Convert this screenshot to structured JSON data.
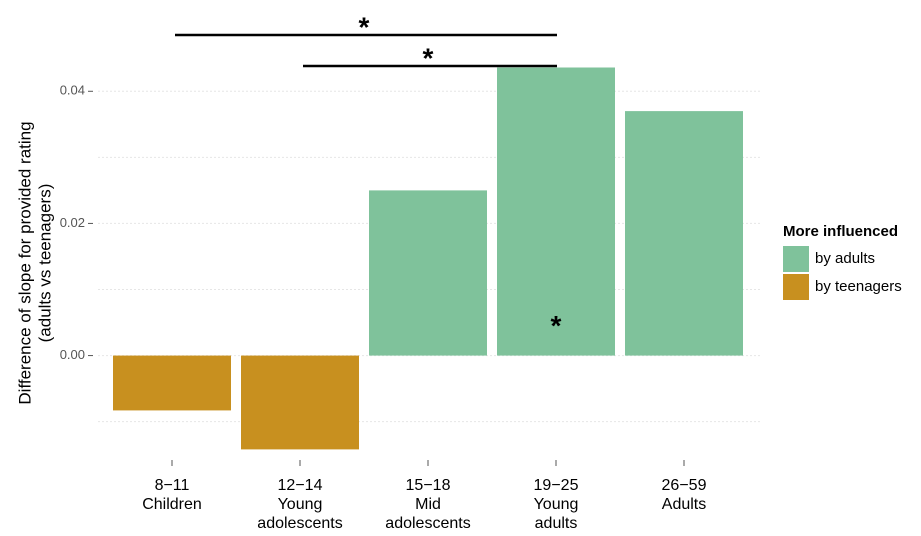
{
  "chart_data": {
    "type": "bar",
    "ylabel": [
      "Difference of slope for provided rating",
      "(adults vs teenagers)"
    ],
    "categories": [
      [
        "8−11",
        "Children"
      ],
      [
        "12−14",
        "Young",
        "adolescents"
      ],
      [
        "15−18",
        "Mid",
        "adolescents"
      ],
      [
        "19−25",
        "Young",
        "adults"
      ],
      [
        "26−59",
        "Adults"
      ]
    ],
    "series": [
      {
        "name": "by adults",
        "color": "#7fc29b",
        "values": [
          null,
          null,
          0.025,
          0.0436,
          0.037
        ]
      },
      {
        "name": "by teenagers",
        "color": "#c8901f",
        "values": [
          -0.0083,
          -0.0142,
          null,
          null,
          null
        ]
      }
    ],
    "legend_title": "More influenced",
    "ylim": [
      -0.0152,
      0.052
    ],
    "yticks": [
      {
        "value": 0,
        "label": "0.00"
      },
      {
        "value": 0.02,
        "label": "0.02"
      },
      {
        "value": 0.04,
        "label": "0.04"
      }
    ],
    "minor_yticks": [
      -0.01,
      0.01,
      0.03
    ],
    "grid": true,
    "brackets": [
      {
        "text": "*",
        "from": 0,
        "to": 3
      },
      {
        "text": "*",
        "from": 1,
        "to": 3
      }
    ],
    "bar_annotations": [
      {
        "text": "*",
        "category": 3
      }
    ]
  }
}
